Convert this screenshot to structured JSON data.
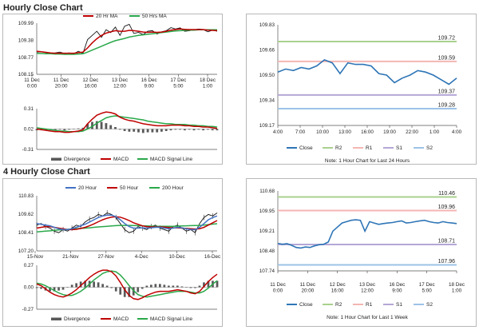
{
  "headings": {
    "hourly": "Hourly Close Chart",
    "four_hourly": "4 Hourly Close Chart"
  },
  "colors": {
    "close": "#2e75b6",
    "ma_fast": "#c00000",
    "ma_slow": "#2aa84a",
    "ma_200": "#2aa84a",
    "ma_20h": "#4472c4",
    "r2": "#a9d18e",
    "r1": "#f4b6b2",
    "s1": "#b4a7d6",
    "s2": "#9dc3e6",
    "divergence": "#595959",
    "macd": "#c00000",
    "signal": "#2aa84a",
    "price": "#111111"
  },
  "chart_data": [
    {
      "id": "hourly_price",
      "type": "line",
      "title": "Hourly Close Chart",
      "legend": [
        "20 Hr MA",
        "50 Hrs MA"
      ],
      "yticks": [
        "109.99",
        "109.38",
        "108.77",
        "108.15"
      ],
      "ylim": [
        108.15,
        109.99
      ],
      "xticks": [
        "11 Dec\n0:00",
        "11 Dec\n20:00",
        "12 Dec\n16:00",
        "13 Dec\n12:00",
        "16 Dec\n9:00",
        "17 Dec\n5:00",
        "18 Dec\n1:00"
      ],
      "series": [
        {
          "name": "Close",
          "values": [
            108.95,
            108.96,
            108.93,
            108.9,
            108.92,
            108.95,
            108.9,
            108.92,
            108.89,
            108.98,
            108.9,
            109.4,
            109.55,
            109.7,
            109.48,
            109.75,
            109.65,
            109.85,
            109.55,
            109.88,
            109.95,
            109.62,
            109.66,
            109.58,
            109.7,
            109.72,
            109.6,
            109.68,
            109.72,
            109.83,
            109.78,
            109.82,
            109.7,
            109.72,
            109.75,
            109.78,
            109.76,
            109.68,
            109.74,
            109.7
          ]
        },
        {
          "name": "20 Hr MA",
          "values": [
            108.98,
            108.96,
            108.94,
            108.92,
            108.91,
            108.91,
            108.91,
            108.91,
            108.91,
            108.93,
            108.95,
            109.1,
            109.28,
            109.43,
            109.55,
            109.63,
            109.68,
            109.72,
            109.7,
            109.7,
            109.73,
            109.72,
            109.7,
            109.67,
            109.66,
            109.67,
            109.66,
            109.67,
            109.7,
            109.74,
            109.76,
            109.78,
            109.77,
            109.76,
            109.76,
            109.76,
            109.76,
            109.74,
            109.73,
            109.72
          ]
        },
        {
          "name": "50 Hrs MA",
          "values": [
            108.9,
            108.9,
            108.89,
            108.89,
            108.88,
            108.88,
            108.87,
            108.87,
            108.87,
            108.88,
            108.89,
            108.95,
            109.02,
            109.09,
            109.16,
            109.23,
            109.3,
            109.36,
            109.4,
            109.44,
            109.49,
            109.52,
            109.55,
            109.57,
            109.59,
            109.61,
            109.63,
            109.65,
            109.67,
            109.69,
            109.71,
            109.72,
            109.73,
            109.74,
            109.74,
            109.75,
            109.75,
            109.75,
            109.75,
            109.75
          ]
        }
      ]
    },
    {
      "id": "hourly_macd",
      "type": "line",
      "legend": [
        "Divergence",
        "MACD",
        "MACD Signal Line"
      ],
      "yticks": [
        "0.31",
        "0.02",
        "-0.31"
      ],
      "ylim": [
        -0.31,
        0.31
      ],
      "series": [
        {
          "name": "MACD",
          "values": [
            0.0,
            -0.01,
            -0.02,
            -0.03,
            -0.04,
            -0.04,
            -0.05,
            -0.05,
            -0.04,
            -0.03,
            -0.01,
            0.08,
            0.15,
            0.21,
            0.24,
            0.26,
            0.25,
            0.23,
            0.18,
            0.15,
            0.13,
            0.12,
            0.1,
            0.08,
            0.07,
            0.06,
            0.05,
            0.05,
            0.05,
            0.06,
            0.06,
            0.06,
            0.05,
            0.05,
            0.04,
            0.04,
            0.03,
            0.03,
            0.02,
            0.01
          ]
        },
        {
          "name": "MACD Signal Line",
          "values": [
            0.02,
            0.01,
            0.0,
            -0.01,
            -0.02,
            -0.03,
            -0.03,
            -0.04,
            -0.04,
            -0.04,
            -0.03,
            0.0,
            0.04,
            0.09,
            0.13,
            0.17,
            0.19,
            0.2,
            0.19,
            0.18,
            0.17,
            0.16,
            0.15,
            0.14,
            0.12,
            0.11,
            0.1,
            0.09,
            0.08,
            0.08,
            0.07,
            0.07,
            0.07,
            0.06,
            0.06,
            0.05,
            0.05,
            0.04,
            0.04,
            0.03
          ]
        },
        {
          "name": "Divergence",
          "values": [
            -0.02,
            -0.02,
            -0.02,
            -0.02,
            -0.02,
            -0.01,
            -0.02,
            -0.01,
            0.0,
            0.01,
            0.02,
            0.08,
            0.11,
            0.12,
            0.11,
            0.09,
            0.06,
            0.03,
            -0.01,
            -0.03,
            -0.04,
            -0.04,
            -0.05,
            -0.06,
            -0.05,
            -0.05,
            -0.05,
            -0.04,
            -0.03,
            -0.02,
            -0.01,
            -0.01,
            -0.02,
            -0.01,
            -0.02,
            -0.01,
            -0.02,
            -0.01,
            -0.02,
            -0.02
          ]
        }
      ]
    },
    {
      "id": "hourly_levels",
      "type": "line",
      "note": "Note: 1 Hour Chart for Last 24 Hours",
      "legend": [
        "Close",
        "R2",
        "R1",
        "S1",
        "S2"
      ],
      "yticks": [
        "109.83",
        "109.66",
        "109.50",
        "109.34",
        "109.17"
      ],
      "ylim": [
        109.17,
        109.83
      ],
      "xticks": [
        "4:00",
        "7:00",
        "10:00",
        "13:00",
        "16:00",
        "19:00",
        "22:00",
        "1:00",
        "4:00"
      ],
      "levels": [
        {
          "name": "R2",
          "value": 109.72,
          "label": "109.72"
        },
        {
          "name": "R1",
          "value": 109.59,
          "label": "109.59"
        },
        {
          "name": "S1",
          "value": 109.37,
          "label": "109.37"
        },
        {
          "name": "S2",
          "value": 109.28,
          "label": "109.28"
        }
      ],
      "series": [
        {
          "name": "Close",
          "values": [
            109.52,
            109.54,
            109.53,
            109.55,
            109.54,
            109.56,
            109.6,
            109.58,
            109.51,
            109.58,
            109.57,
            109.57,
            109.56,
            109.51,
            109.5,
            109.45,
            109.48,
            109.5,
            109.53,
            109.52,
            109.5,
            109.47,
            109.44,
            109.48
          ]
        }
      ]
    },
    {
      "id": "four_hourly_price",
      "type": "line",
      "title": "4 Hourly Close Chart",
      "legend": [
        "20 Hour",
        "50 Hour",
        "200 Hour"
      ],
      "yticks": [
        "110.83",
        "109.62",
        "108.41",
        "107.20"
      ],
      "ylim": [
        107.2,
        110.83
      ],
      "xticks": [
        "15-Nov",
        "21-Nov",
        "27-Nov",
        "4-Dec",
        "10-Dec",
        "16-Dec"
      ],
      "series": [
        {
          "name": "Close",
          "values": [
            108.9,
            109.0,
            108.8,
            108.7,
            108.5,
            108.4,
            108.6,
            108.5,
            108.7,
            108.9,
            108.8,
            109.1,
            109.3,
            109.4,
            109.6,
            109.5,
            109.7,
            109.6,
            109.4,
            109.0,
            108.6,
            108.4,
            108.5,
            108.8,
            108.7,
            108.6,
            108.8,
            108.9,
            108.7,
            108.6,
            108.5,
            108.8,
            108.9,
            108.7,
            108.5,
            108.6,
            108.4,
            109.0,
            109.4,
            109.6,
            109.5,
            109.7
          ]
        },
        {
          "name": "20 Hour",
          "values": [
            109.0,
            108.95,
            108.9,
            108.85,
            108.75,
            108.65,
            108.6,
            108.6,
            108.65,
            108.75,
            108.85,
            108.95,
            109.1,
            109.25,
            109.4,
            109.5,
            109.55,
            109.55,
            109.45,
            109.25,
            109.0,
            108.8,
            108.7,
            108.7,
            108.72,
            108.7,
            108.72,
            108.75,
            108.75,
            108.7,
            108.65,
            108.7,
            108.75,
            108.72,
            108.65,
            108.6,
            108.6,
            108.75,
            109.0,
            109.25,
            109.4,
            109.5
          ]
        },
        {
          "name": "50 Hour",
          "values": [
            108.7,
            108.75,
            108.8,
            108.8,
            108.75,
            108.7,
            108.65,
            108.6,
            108.6,
            108.62,
            108.68,
            108.75,
            108.85,
            108.98,
            109.12,
            109.25,
            109.35,
            109.42,
            109.45,
            109.42,
            109.32,
            109.2,
            109.05,
            108.95,
            108.85,
            108.8,
            108.78,
            108.78,
            108.78,
            108.76,
            108.74,
            108.72,
            108.72,
            108.7,
            108.68,
            108.66,
            108.64,
            108.66,
            108.75,
            108.9,
            109.05,
            109.2
          ]
        },
        {
          "name": "200 Hour",
          "values": [
            108.45,
            108.48,
            108.5,
            108.52,
            108.55,
            108.58,
            108.6,
            108.62,
            108.64,
            108.66,
            108.68,
            108.7,
            108.72,
            108.75,
            108.78,
            108.8,
            108.82,
            108.84,
            108.86,
            108.88,
            108.88,
            108.88,
            108.87,
            108.86,
            108.85,
            108.84,
            108.83,
            108.82,
            108.82,
            108.82,
            108.82,
            108.82,
            108.83,
            108.84,
            108.85,
            108.86,
            108.87,
            108.88,
            108.9,
            108.93,
            108.96,
            108.99
          ]
        }
      ]
    },
    {
      "id": "four_hourly_macd",
      "type": "line",
      "legend": [
        "Divergence",
        "MACD",
        "MACD Signal Line"
      ],
      "yticks": [
        "0.27",
        "0.00",
        "-0.27"
      ],
      "ylim": [
        -0.27,
        0.27
      ],
      "series": [
        {
          "name": "MACD",
          "values": [
            0.04,
            0.02,
            -0.02,
            -0.06,
            -0.09,
            -0.11,
            -0.12,
            -0.1,
            -0.07,
            -0.03,
            0.02,
            0.07,
            0.12,
            0.16,
            0.19,
            0.21,
            0.21,
            0.19,
            0.14,
            0.06,
            -0.03,
            -0.1,
            -0.14,
            -0.15,
            -0.13,
            -0.1,
            -0.08,
            -0.06,
            -0.05,
            -0.05,
            -0.05,
            -0.04,
            -0.03,
            -0.04,
            -0.05,
            -0.07,
            -0.08,
            -0.05,
            0.01,
            0.07,
            0.12,
            0.16
          ]
        },
        {
          "name": "MACD Signal Line",
          "values": [
            0.05,
            0.04,
            0.02,
            -0.01,
            -0.04,
            -0.07,
            -0.09,
            -0.1,
            -0.1,
            -0.08,
            -0.05,
            -0.01,
            0.04,
            0.09,
            0.13,
            0.17,
            0.19,
            0.2,
            0.19,
            0.15,
            0.09,
            0.02,
            -0.04,
            -0.09,
            -0.11,
            -0.12,
            -0.11,
            -0.1,
            -0.09,
            -0.08,
            -0.07,
            -0.06,
            -0.05,
            -0.05,
            -0.05,
            -0.06,
            -0.07,
            -0.07,
            -0.05,
            -0.01,
            0.04,
            0.08
          ]
        },
        {
          "name": "Divergence",
          "values": [
            -0.01,
            -0.02,
            -0.04,
            -0.05,
            -0.05,
            -0.04,
            -0.03,
            0.0,
            0.03,
            0.05,
            0.07,
            0.08,
            0.08,
            0.07,
            0.06,
            0.04,
            0.02,
            -0.01,
            -0.05,
            -0.09,
            -0.12,
            -0.12,
            -0.1,
            -0.06,
            -0.02,
            0.02,
            0.03,
            0.04,
            0.04,
            0.03,
            0.02,
            0.02,
            0.02,
            0.01,
            0.0,
            -0.01,
            -0.01,
            0.02,
            0.06,
            0.08,
            0.08,
            0.08
          ]
        }
      ]
    },
    {
      "id": "four_hourly_levels",
      "type": "line",
      "note": "Note: 1 Hour Chart for Last 1 Week",
      "legend": [
        "Close",
        "R2",
        "R1",
        "S1",
        "S2"
      ],
      "yticks": [
        "110.68",
        "109.95",
        "109.21",
        "108.48",
        "107.74"
      ],
      "ylim": [
        107.74,
        110.68
      ],
      "xticks": [
        "11 Dec\n0:00",
        "11 Dec\n20:00",
        "12 Dec\n16:00",
        "13 Dec\n12:00",
        "16 Dec\n9:00",
        "17 Dec\n5:00",
        "18 Dec\n1:00"
      ],
      "levels": [
        {
          "name": "R2",
          "value": 110.46,
          "label": "110.46"
        },
        {
          "name": "R1",
          "value": 109.96,
          "label": "109.96"
        },
        {
          "name": "S1",
          "value": 108.71,
          "label": "108.71"
        },
        {
          "name": "S2",
          "value": 107.96,
          "label": "107.96"
        }
      ],
      "series": [
        {
          "name": "Close",
          "values": [
            108.75,
            108.72,
            108.74,
            108.68,
            108.6,
            108.58,
            108.62,
            108.6,
            108.66,
            108.7,
            108.72,
            108.8,
            109.2,
            109.35,
            109.5,
            109.55,
            109.6,
            109.62,
            109.6,
            109.2,
            109.55,
            109.5,
            109.45,
            109.48,
            109.5,
            109.52,
            109.55,
            109.58,
            109.5,
            109.52,
            109.55,
            109.58,
            109.6,
            109.55,
            109.52,
            109.5,
            109.55,
            109.52,
            109.5,
            109.48
          ]
        }
      ]
    }
  ]
}
